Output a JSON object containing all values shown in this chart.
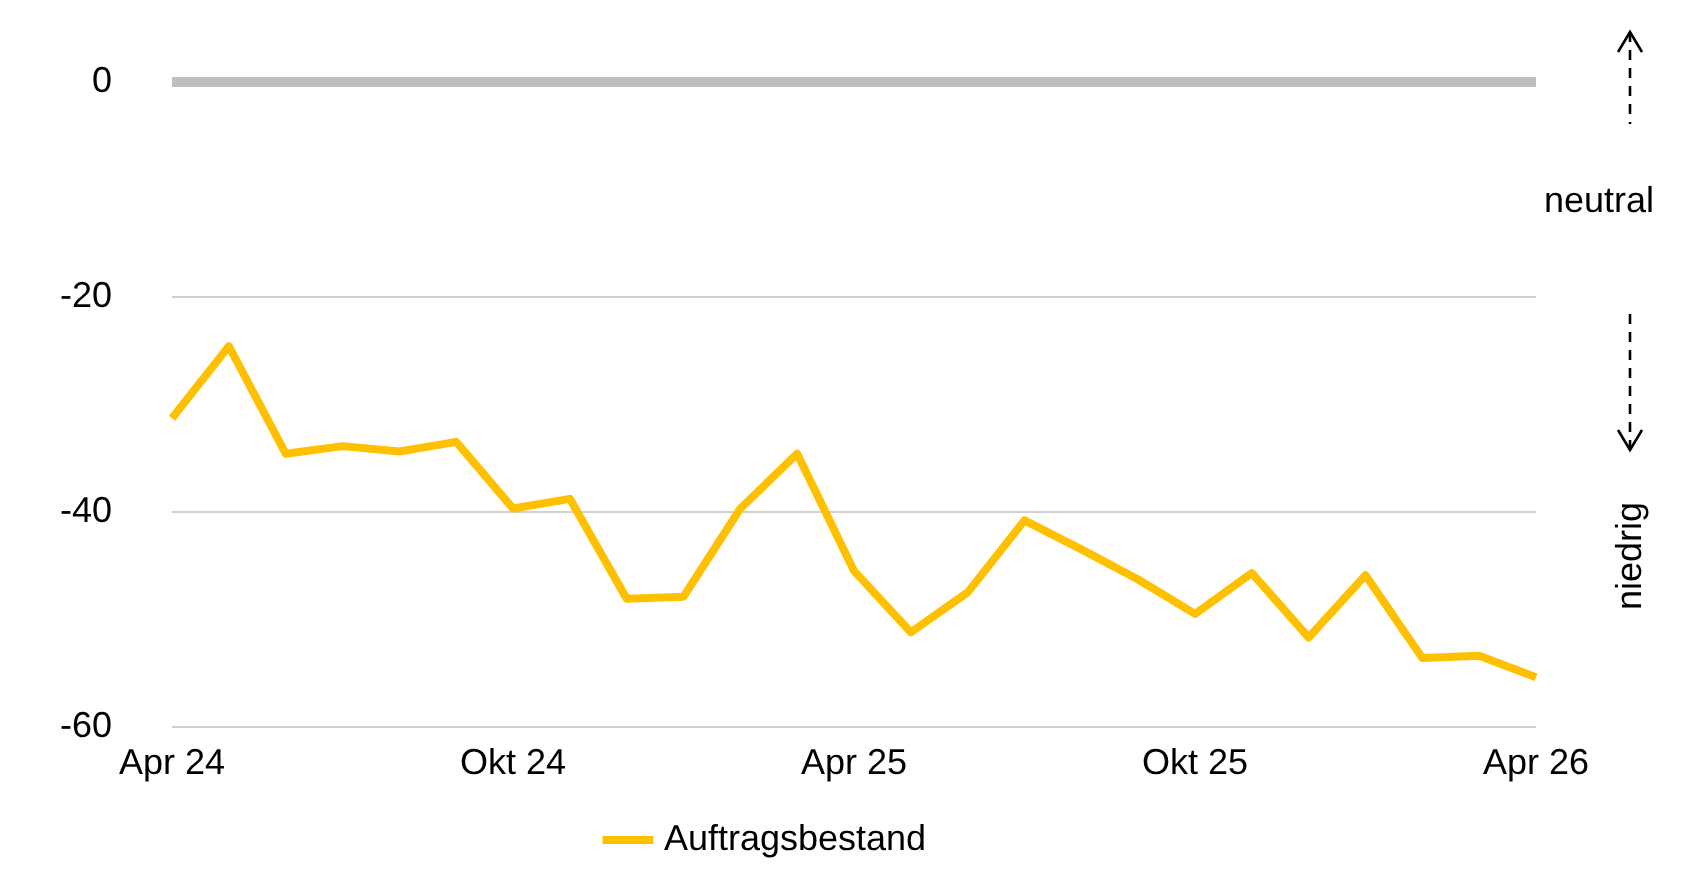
{
  "chart_data": {
    "type": "line",
    "categories": [
      "Apr 24",
      null,
      null,
      null,
      null,
      null,
      "Okt 24",
      null,
      null,
      null,
      null,
      null,
      "Apr 25",
      null,
      null,
      null,
      null,
      null,
      "Okt 25",
      null,
      null,
      null,
      null,
      null,
      "Apr 26"
    ],
    "series": [
      {
        "name": "Auftragsbestand",
        "color": "#ffc000",
        "values": [
          -31.3,
          -24.6,
          -34.6,
          -33.9,
          -34.4,
          -33.5,
          -39.7,
          -38.8,
          -48.1,
          -47.9,
          -39.7,
          -34.6,
          -45.5,
          -51.2,
          -47.5,
          -40.8,
          -43.5,
          -46.3,
          -49.5,
          -45.7,
          -51.7,
          -45.9,
          -53.6,
          -53.4,
          -55.4
        ]
      }
    ],
    "ylim": [
      -60,
      0
    ],
    "yticks": [
      -60,
      -40,
      -20,
      0
    ],
    "grid": "y",
    "legend": "bottom",
    "marker": "none",
    "line_style": "solid",
    "annotations": [
      "neutral",
      "niedrig"
    ]
  }
}
